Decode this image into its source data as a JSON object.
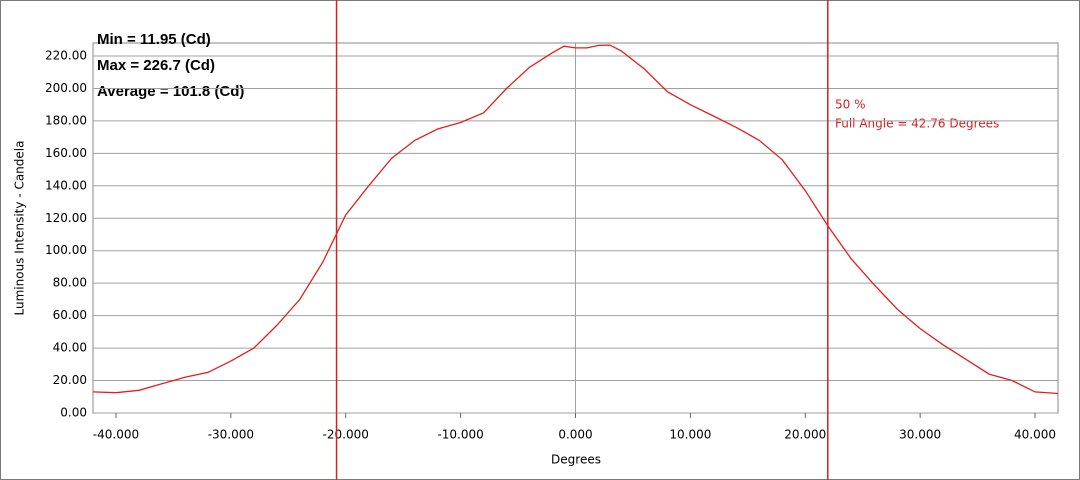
{
  "chart_data": {
    "type": "line",
    "x_label": "Degrees",
    "y_label": "Luminous Intensity - Candela",
    "stats": [
      "Min = 11.95 (Cd)",
      "Max = 226.7 (Cd)",
      "Average = 101.8 (Cd)"
    ],
    "annotation": [
      "50 %",
      "Full Angle = 42.76 Degrees"
    ],
    "x": [
      -42,
      -40,
      -38,
      -36,
      -34,
      -32,
      -30,
      -28,
      -26,
      -24,
      -22,
      -20,
      -18,
      -16,
      -14,
      -12,
      -10,
      -8,
      -6,
      -4,
      -2,
      -1,
      0,
      1,
      2,
      3,
      4,
      6,
      8,
      10,
      12,
      14,
      16,
      18,
      20,
      22,
      24,
      26,
      28,
      30,
      32,
      34,
      36,
      38,
      40,
      42
    ],
    "series": [
      {
        "color": "#e02020",
        "values": [
          13,
          12.5,
          14,
          18,
          22,
          25,
          32,
          40,
          54,
          70,
          93,
          122,
          140,
          157,
          168,
          175,
          179,
          185,
          200,
          213,
          222,
          226,
          225,
          225,
          226.5,
          226.7,
          223,
          212,
          198,
          190,
          183,
          176,
          168,
          156,
          137,
          115,
          95,
          79,
          64,
          52,
          42,
          33,
          24,
          20,
          13,
          12
        ]
      }
    ],
    "markers": [
      -20.8,
      21.96
    ],
    "marker_color": "#d42020",
    "xlim": [
      -42,
      42
    ],
    "ylim": [
      0,
      228
    ],
    "xticks": [
      {
        "value": -40,
        "label": "-40.000"
      },
      {
        "value": -30,
        "label": "-30.000"
      },
      {
        "value": -20,
        "label": "-20.000"
      },
      {
        "value": -10,
        "label": "-10.000"
      },
      {
        "value": 0,
        "label": "0.000"
      },
      {
        "value": 10,
        "label": "10.000"
      },
      {
        "value": 20,
        "label": "20.000"
      },
      {
        "value": 30,
        "label": "30.000"
      },
      {
        "value": 40,
        "label": "40.000"
      }
    ],
    "yticks": [
      {
        "value": 0,
        "label": "0.00"
      },
      {
        "value": 20,
        "label": "20.00"
      },
      {
        "value": 40,
        "label": "40.00"
      },
      {
        "value": 60,
        "label": "60.00"
      },
      {
        "value": 80,
        "label": "80.00"
      },
      {
        "value": 100,
        "label": "100.00"
      },
      {
        "value": 120,
        "label": "120.00"
      },
      {
        "value": 140,
        "label": "140.00"
      },
      {
        "value": 160,
        "label": "160.00"
      },
      {
        "value": 180,
        "label": "180.00"
      },
      {
        "value": 200,
        "label": "200.00"
      },
      {
        "value": 220,
        "label": "220.00"
      }
    ],
    "grid": true
  }
}
